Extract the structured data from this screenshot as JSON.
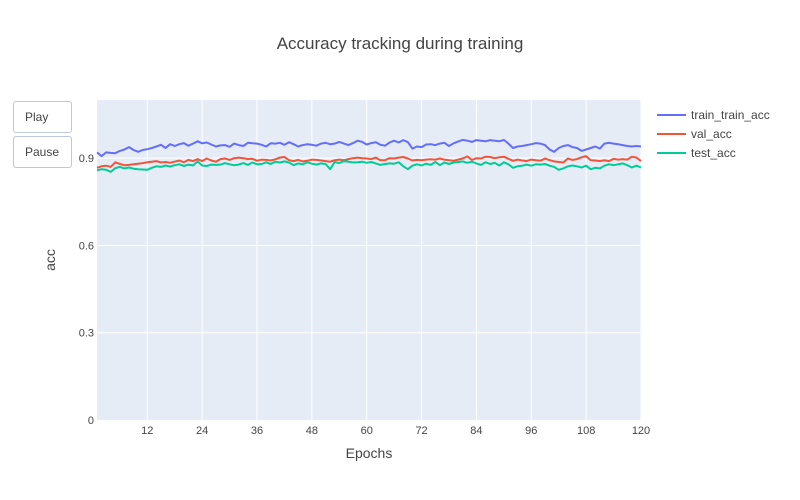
{
  "buttons": {
    "play": "Play",
    "pause": "Pause"
  },
  "chart_data": {
    "type": "line",
    "title": "Accuracy tracking during training",
    "xlabel": "Epochs",
    "ylabel": "acc",
    "xlim": [
      1,
      120
    ],
    "ylim": [
      0,
      1.1
    ],
    "xticks": [
      12,
      24,
      36,
      48,
      60,
      72,
      84,
      96,
      108,
      120
    ],
    "yticks": [
      0,
      0.3,
      0.6,
      0.9
    ],
    "ytick_labels": [
      "0",
      "0.3",
      "0.6",
      "0.9"
    ],
    "grid": true,
    "legend_position": "right",
    "x": [
      1,
      2,
      3,
      4,
      5,
      6,
      7,
      8,
      9,
      10,
      11,
      12,
      13,
      14,
      15,
      16,
      17,
      18,
      19,
      20,
      21,
      22,
      23,
      24,
      25,
      26,
      27,
      28,
      29,
      30,
      31,
      32,
      33,
      34,
      35,
      36,
      37,
      38,
      39,
      40,
      41,
      42,
      43,
      44,
      45,
      46,
      47,
      48,
      49,
      50,
      51,
      52,
      53,
      54,
      55,
      56,
      57,
      58,
      59,
      60,
      61,
      62,
      63,
      64,
      65,
      66,
      67,
      68,
      69,
      70,
      71,
      72,
      73,
      74,
      75,
      76,
      77,
      78,
      79,
      80,
      81,
      82,
      83,
      84,
      85,
      86,
      87,
      88,
      89,
      90,
      91,
      92,
      93,
      94,
      95,
      96,
      97,
      98,
      99,
      100,
      101,
      102,
      103,
      104,
      105,
      106,
      107,
      108,
      109,
      110,
      111,
      112,
      113,
      114,
      115,
      116,
      117,
      118,
      119,
      120
    ],
    "series": [
      {
        "name": "train_train_acc",
        "color": "#636efa",
        "values": [
          0.92,
          0.907,
          0.92,
          0.918,
          0.917,
          0.925,
          0.93,
          0.938,
          0.928,
          0.922,
          0.928,
          0.931,
          0.935,
          0.94,
          0.946,
          0.935,
          0.948,
          0.942,
          0.948,
          0.952,
          0.943,
          0.95,
          0.958,
          0.951,
          0.954,
          0.947,
          0.94,
          0.944,
          0.945,
          0.939,
          0.95,
          0.945,
          0.942,
          0.953,
          0.951,
          0.95,
          0.946,
          0.94,
          0.951,
          0.95,
          0.953,
          0.946,
          0.955,
          0.948,
          0.94,
          0.945,
          0.948,
          0.946,
          0.943,
          0.95,
          0.953,
          0.948,
          0.95,
          0.956,
          0.95,
          0.945,
          0.952,
          0.96,
          0.956,
          0.947,
          0.952,
          0.955,
          0.946,
          0.943,
          0.954,
          0.96,
          0.954,
          0.962,
          0.955,
          0.933,
          0.94,
          0.938,
          0.947,
          0.948,
          0.945,
          0.95,
          0.953,
          0.942,
          0.951,
          0.957,
          0.963,
          0.96,
          0.956,
          0.962,
          0.96,
          0.958,
          0.962,
          0.96,
          0.958,
          0.963,
          0.95,
          0.935,
          0.94,
          0.942,
          0.945,
          0.948,
          0.952,
          0.95,
          0.945,
          0.93,
          0.922,
          0.935,
          0.942,
          0.945,
          0.938,
          0.935,
          0.925,
          0.93,
          0.935,
          0.94,
          0.933,
          0.95,
          0.953,
          0.95,
          0.948,
          0.945,
          0.942,
          0.94,
          0.942,
          0.94
        ]
      },
      {
        "name": "val_acc",
        "color": "#ef553b",
        "values": [
          0.867,
          0.872,
          0.874,
          0.87,
          0.886,
          0.88,
          0.876,
          0.877,
          0.879,
          0.881,
          0.883,
          0.886,
          0.888,
          0.89,
          0.885,
          0.887,
          0.884,
          0.888,
          0.892,
          0.886,
          0.894,
          0.89,
          0.897,
          0.89,
          0.899,
          0.892,
          0.888,
          0.897,
          0.899,
          0.894,
          0.9,
          0.902,
          0.9,
          0.897,
          0.898,
          0.891,
          0.895,
          0.894,
          0.892,
          0.896,
          0.902,
          0.904,
          0.893,
          0.89,
          0.894,
          0.889,
          0.891,
          0.895,
          0.894,
          0.892,
          0.89,
          0.888,
          0.893,
          0.895,
          0.893,
          0.897,
          0.9,
          0.902,
          0.9,
          0.899,
          0.897,
          0.902,
          0.893,
          0.893,
          0.9,
          0.899,
          0.902,
          0.904,
          0.899,
          0.892,
          0.894,
          0.893,
          0.895,
          0.896,
          0.895,
          0.899,
          0.895,
          0.893,
          0.891,
          0.895,
          0.899,
          0.906,
          0.894,
          0.9,
          0.899,
          0.905,
          0.904,
          0.9,
          0.903,
          0.905,
          0.898,
          0.891,
          0.895,
          0.892,
          0.89,
          0.895,
          0.893,
          0.891,
          0.899,
          0.893,
          0.889,
          0.887,
          0.885,
          0.899,
          0.894,
          0.897,
          0.903,
          0.907,
          0.893,
          0.892,
          0.89,
          0.893,
          0.89,
          0.898,
          0.895,
          0.897,
          0.895,
          0.905,
          0.902,
          0.89
        ]
      },
      {
        "name": "test_acc",
        "color": "#00cc96",
        "values": [
          0.858,
          0.862,
          0.86,
          0.853,
          0.866,
          0.87,
          0.865,
          0.868,
          0.864,
          0.862,
          0.861,
          0.86,
          0.867,
          0.872,
          0.87,
          0.875,
          0.871,
          0.876,
          0.879,
          0.873,
          0.878,
          0.875,
          0.889,
          0.875,
          0.873,
          0.878,
          0.877,
          0.878,
          0.883,
          0.879,
          0.876,
          0.878,
          0.883,
          0.877,
          0.885,
          0.879,
          0.88,
          0.886,
          0.88,
          0.888,
          0.885,
          0.889,
          0.885,
          0.876,
          0.882,
          0.879,
          0.886,
          0.881,
          0.878,
          0.882,
          0.88,
          0.862,
          0.887,
          0.883,
          0.89,
          0.888,
          0.885,
          0.886,
          0.888,
          0.884,
          0.887,
          0.882,
          0.877,
          0.88,
          0.882,
          0.881,
          0.886,
          0.872,
          0.862,
          0.874,
          0.879,
          0.875,
          0.881,
          0.877,
          0.887,
          0.876,
          0.885,
          0.88,
          0.885,
          0.887,
          0.889,
          0.884,
          0.888,
          0.882,
          0.877,
          0.886,
          0.88,
          0.884,
          0.875,
          0.886,
          0.879,
          0.867,
          0.872,
          0.874,
          0.878,
          0.874,
          0.879,
          0.878,
          0.88,
          0.874,
          0.87,
          0.86,
          0.865,
          0.872,
          0.875,
          0.872,
          0.868,
          0.874,
          0.862,
          0.867,
          0.865,
          0.874,
          0.879,
          0.876,
          0.879,
          0.882,
          0.876,
          0.868,
          0.874,
          0.868
        ]
      }
    ]
  }
}
